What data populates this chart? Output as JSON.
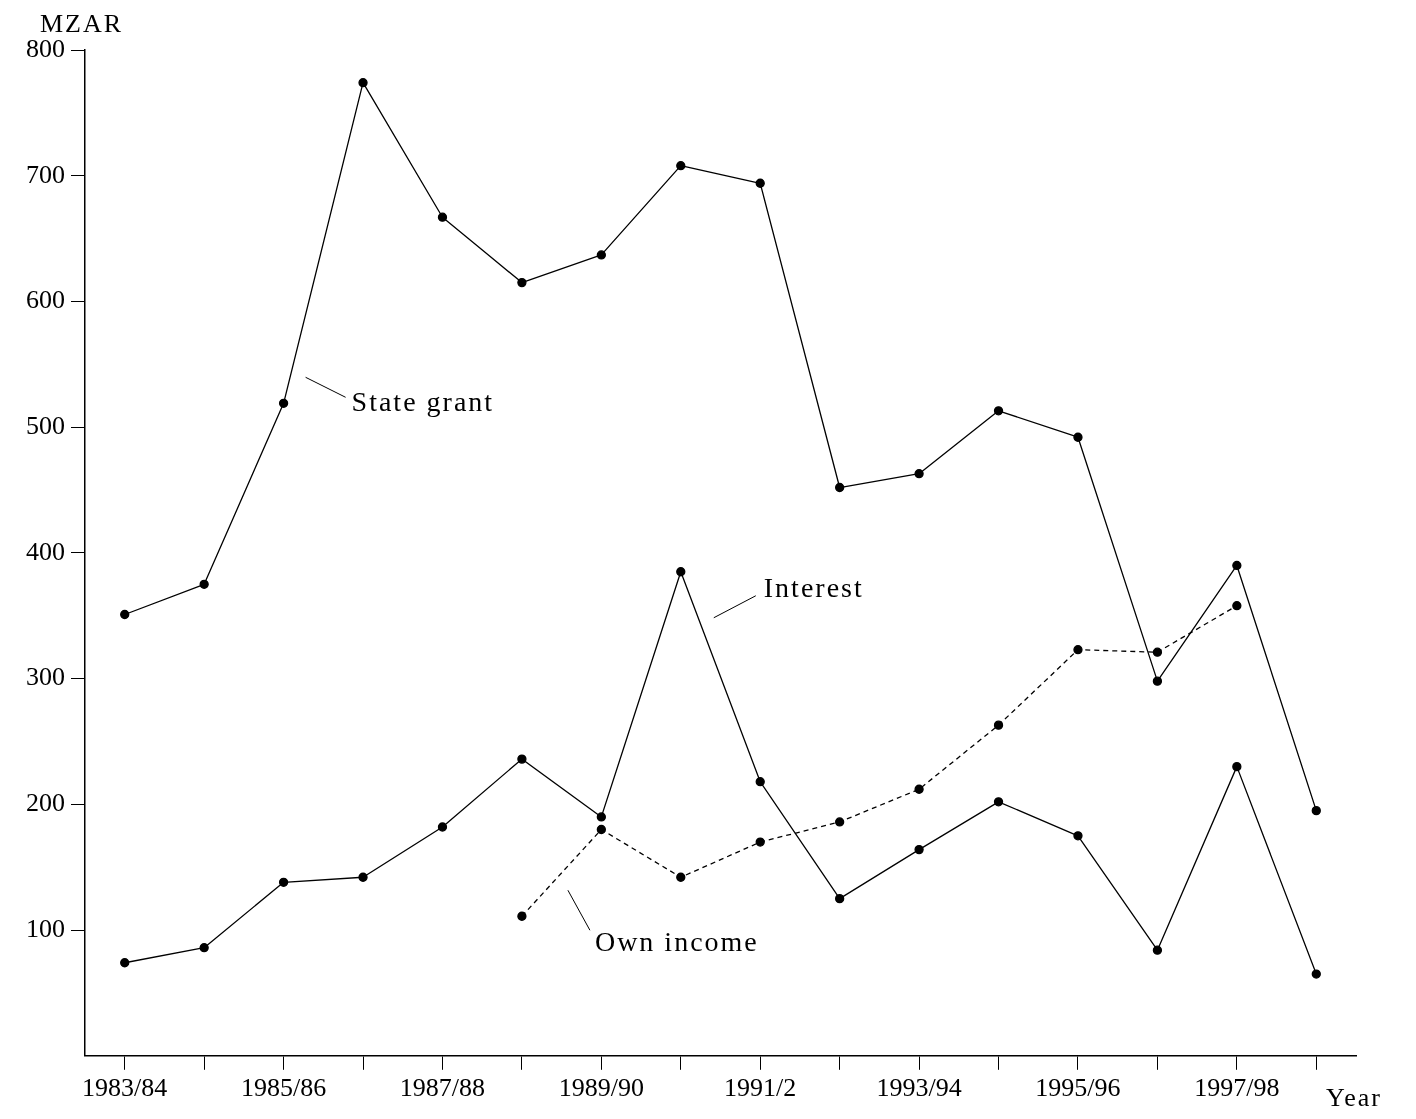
{
  "chart_data": {
    "type": "line",
    "ylabel": "MZAR",
    "xlabel": "Year",
    "categories": [
      "1983/84",
      null,
      "1985/86",
      null,
      "1987/88",
      null,
      "1989/90",
      null,
      "1991/2",
      null,
      "1993/94",
      null,
      "1995/96",
      null,
      "1997/98",
      null
    ],
    "series": [
      {
        "color": "#000000",
        "values": [
          351,
          375,
          519,
          774,
          667,
          615,
          637,
          708,
          694,
          452,
          463,
          513,
          492,
          298,
          390,
          195
        ]
      },
      {
        "color": "#000000",
        "values": [
          74,
          86,
          138,
          142,
          182,
          236,
          190,
          385,
          218,
          125,
          164,
          202,
          175,
          84,
          230,
          65
        ]
      },
      {
        "color": "#000000",
        "line_style": "dashed",
        "values": [
          null,
          null,
          null,
          null,
          null,
          111,
          180,
          142,
          170,
          186,
          212,
          263,
          323,
          321,
          358,
          null
        ]
      }
    ],
    "annotations": [
      "State grant",
      "Interest",
      "Own income"
    ],
    "ylim": [
      0,
      800
    ],
    "yticks": [
      100,
      200,
      300,
      400,
      500,
      600,
      700,
      800
    ],
    "grid": false,
    "legend": false,
    "marker": "circle",
    "line_style": "solid"
  }
}
